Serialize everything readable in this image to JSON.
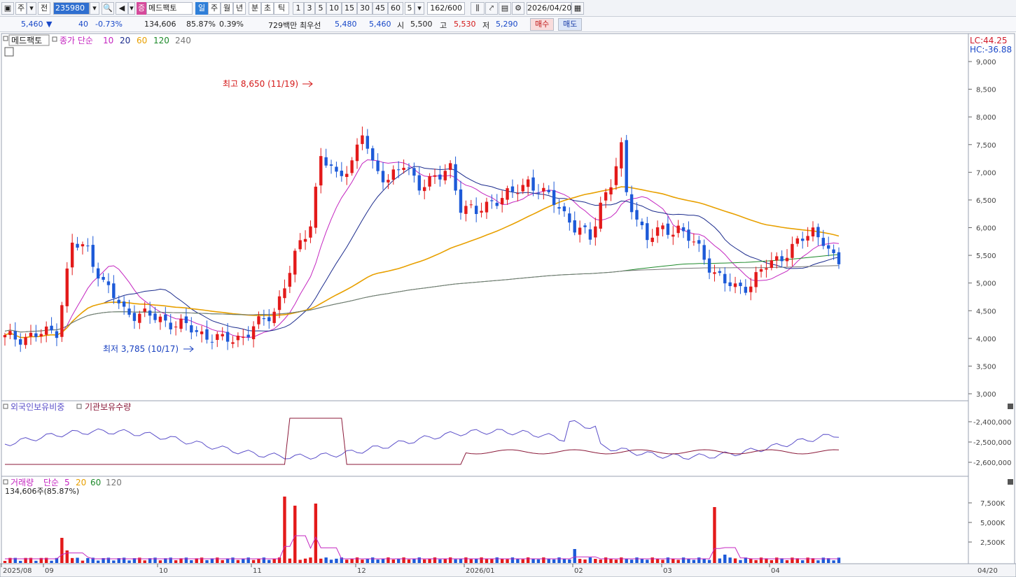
{
  "toolbar": {
    "market_label": "주",
    "prev_label": "전",
    "code": "235980",
    "stock_badge": "증",
    "stock_name": "메드팩토",
    "periods": [
      "일",
      "주",
      "월",
      "년",
      "분",
      "초",
      "틱"
    ],
    "intervals": [
      "1",
      "3",
      "5",
      "10",
      "15",
      "30",
      "45",
      "60"
    ],
    "interval_value": "5",
    "count": "162/600",
    "date": "2026/04/20"
  },
  "quote": {
    "price": "5,460",
    "change": "40",
    "change_pct": "-0.73%",
    "volume": "134,606",
    "volume_pct": "85.87%",
    "turnover": "0.39%",
    "amount": "729백만",
    "best_label": "최우선",
    "ask": "5,480",
    "bid": "5,460",
    "open_label": "시",
    "open": "5,500",
    "high_label": "고",
    "high": "5,530",
    "low_label": "저",
    "low": "5,290",
    "buy_label": "매수",
    "sell_label": "매도"
  },
  "price_panel": {
    "name_tag": "메드팩토",
    "ma_label": "종가 단순",
    "ma_periods": [
      {
        "label": "10",
        "color": "#c426c0"
      },
      {
        "label": "20",
        "color": "#1a2a8c"
      },
      {
        "label": "60",
        "color": "#e8a000"
      },
      {
        "label": "120",
        "color": "#1d8a2a"
      },
      {
        "label": "240",
        "color": "#777777"
      }
    ],
    "lc": "LC:44.25",
    "hc": "HC:-36.88",
    "high_note": "최고 8,650 (11/19)",
    "low_note": "최저 3,785 (10/17)",
    "ticks": [
      "9,000",
      "8,500",
      "8,000",
      "7,500",
      "7,000",
      "6,500",
      "6,000",
      "5,500",
      "5,000",
      "4,500",
      "4,000",
      "3,500",
      "3,000"
    ],
    "tick_values": [
      9000,
      8500,
      8000,
      7500,
      7000,
      6500,
      6000,
      5500,
      5000,
      4500,
      4000,
      3500,
      3000
    ],
    "up_color": "#e31a1a",
    "down_color": "#1d5ad8"
  },
  "holding_panel": {
    "foreign_label": "외국인보유비중",
    "inst_label": "기관보유수량",
    "ticks": [
      "-2,400,000",
      "-2,500,000",
      "-2,600,000"
    ]
  },
  "volume_panel": {
    "label": "거래량",
    "ma_label": "단순",
    "ma_periods": [
      "5",
      "20",
      "60",
      "120"
    ],
    "current": "134,606주(85.87%)",
    "ticks": [
      "7,500K",
      "5,000K",
      "2,500K"
    ]
  },
  "x_axis": {
    "labels": [
      "2025/08",
      "09",
      "10",
      "11",
      "12",
      "2026/01",
      "02",
      "03",
      "04"
    ],
    "end_label": "04/20"
  }
}
